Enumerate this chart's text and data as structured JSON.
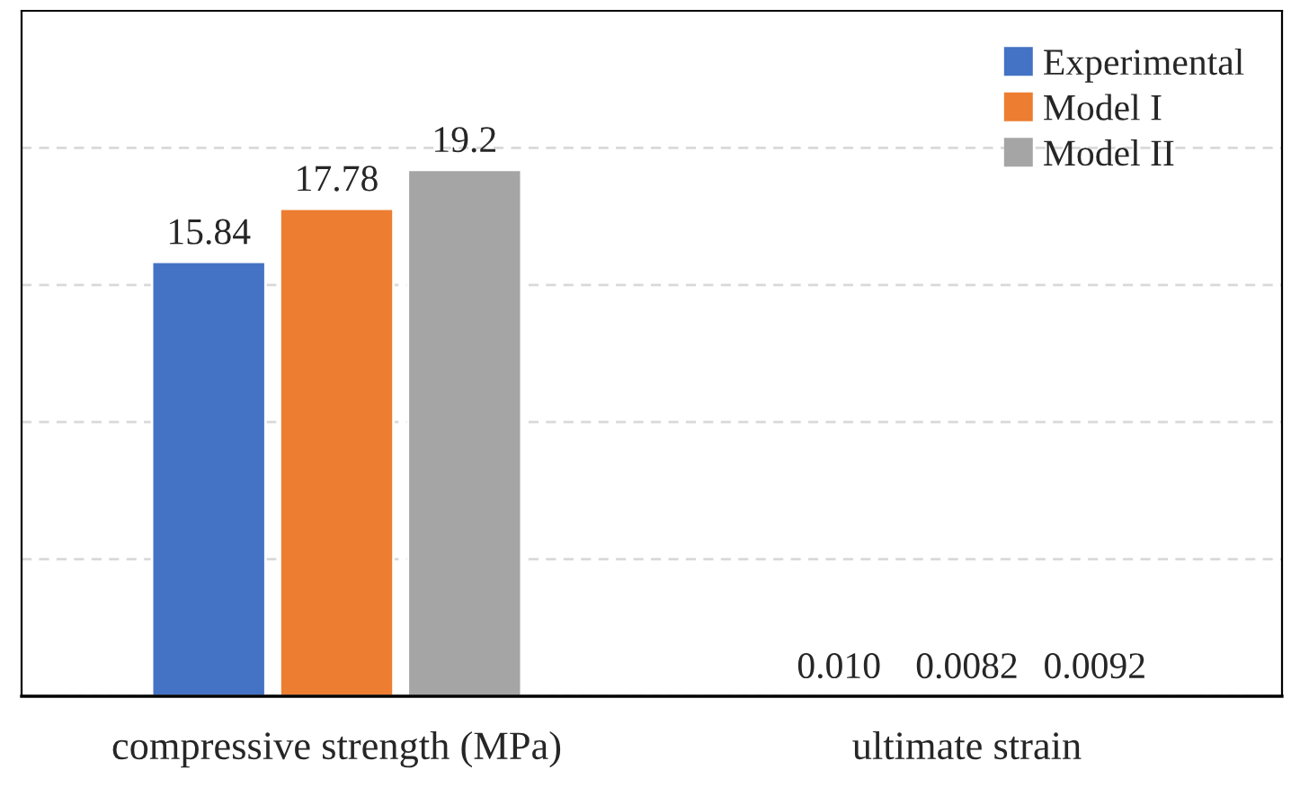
{
  "chart_data": {
    "type": "bar",
    "categories": [
      "compressive strength (MPa)",
      "ultimate strain"
    ],
    "ylim": [
      0,
      25
    ],
    "yticks": [
      {
        "value": 0,
        "label": null
      },
      {
        "value": 5,
        "label": null
      },
      {
        "value": 10,
        "label": null
      },
      {
        "value": 15,
        "label": null
      },
      {
        "value": 20,
        "label": null
      }
    ],
    "grid": "y",
    "legend": "top right",
    "series": [
      {
        "name": "Experimental",
        "color": "#4472c4",
        "values": [
          15.84,
          0.01
        ],
        "value_labels": [
          "15.84",
          "0.010"
        ]
      },
      {
        "name": "Model I",
        "color": "#ed7d31",
        "values": [
          17.78,
          0.0082
        ],
        "value_labels": [
          "17.78",
          "0.0082"
        ]
      },
      {
        "name": "Model II",
        "color": "#a5a5a5",
        "values": [
          19.2,
          0.0092
        ],
        "value_labels": [
          "19.2",
          "0.0092"
        ]
      }
    ]
  }
}
